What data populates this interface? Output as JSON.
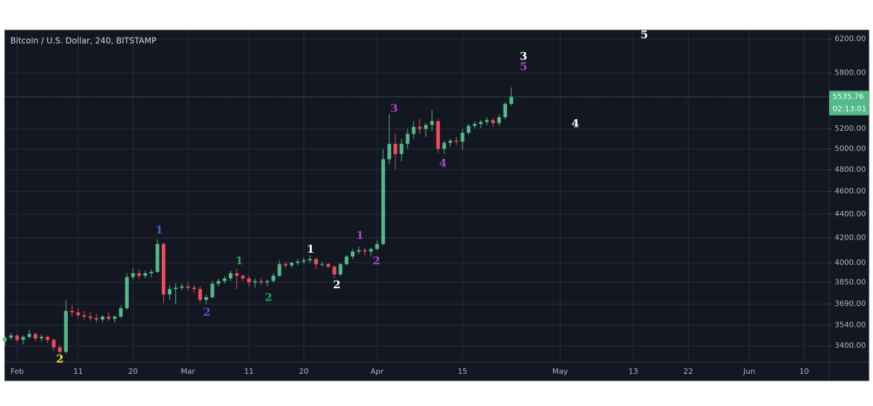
{
  "chart_data": {
    "type": "candlestick",
    "title": "Bitcoin / U.S. Dollar, 240, BITSTAMP",
    "x": [
      -2,
      -1,
      0,
      1,
      2,
      3,
      4,
      5,
      6,
      7,
      8,
      9,
      10,
      11,
      12,
      13,
      14,
      15,
      16,
      17,
      18,
      19,
      20,
      21,
      22,
      23,
      24,
      25,
      26,
      27,
      28,
      29,
      30,
      31,
      32,
      33,
      34,
      35,
      36,
      37,
      38,
      39,
      40,
      41,
      42,
      43,
      44,
      45,
      46,
      47,
      48,
      49,
      50,
      51,
      52,
      53,
      54,
      55,
      56,
      57,
      58,
      59,
      60,
      61,
      62,
      63,
      64,
      65,
      66,
      67,
      68,
      69,
      70,
      71,
      72,
      73,
      74,
      75,
      76,
      77,
      78,
      79,
      80,
      81
    ],
    "open": [
      3430,
      3455,
      3470,
      3440,
      3460,
      3480,
      3450,
      3460,
      3440,
      3390,
      3360,
      3640,
      3630,
      3610,
      3600,
      3590,
      3580,
      3600,
      3585,
      3600,
      3660,
      3890,
      3920,
      3900,
      3920,
      3930,
      4150,
      3760,
      3800,
      3810,
      3820,
      3810,
      3800,
      3720,
      3740,
      3840,
      3860,
      3880,
      3920,
      3900,
      3880,
      3850,
      3860,
      3850,
      3860,
      3900,
      3990,
      3980,
      4000,
      4010,
      4020,
      4030,
      3990,
      3990,
      3970,
      3910,
      3990,
      4050,
      4090,
      4100,
      4090,
      4110,
      4150,
      4900,
      5050,
      4950,
      5050,
      5150,
      5220,
      5200,
      5240,
      5280,
      5000,
      5060,
      5080,
      5070,
      5160,
      5230,
      5250,
      5270,
      5290,
      5260,
      5320,
      5460
    ],
    "high": [
      3470,
      3490,
      3480,
      3470,
      3510,
      3490,
      3475,
      3470,
      3450,
      3400,
      3720,
      3680,
      3660,
      3640,
      3630,
      3620,
      3610,
      3630,
      3610,
      3680,
      3920,
      3960,
      3950,
      3940,
      3950,
      4190,
      4160,
      3830,
      3840,
      3840,
      3850,
      3830,
      3820,
      3760,
      3860,
      3880,
      3900,
      3940,
      3950,
      3910,
      3900,
      3880,
      3880,
      3870,
      3920,
      4020,
      4010,
      4010,
      4030,
      4040,
      4060,
      4040,
      4010,
      4000,
      3980,
      4000,
      4060,
      4110,
      4130,
      4120,
      4120,
      4180,
      5000,
      5350,
      5150,
      5100,
      5200,
      5280,
      5300,
      5260,
      5400,
      5300,
      5080,
      5100,
      5120,
      5200,
      5250,
      5280,
      5290,
      5320,
      5310,
      5350,
      5480,
      5640
    ],
    "low": [
      3400,
      3440,
      3420,
      3410,
      3450,
      3430,
      3430,
      3420,
      3370,
      3340,
      3350,
      3600,
      3590,
      3580,
      3570,
      3560,
      3560,
      3570,
      3560,
      3590,
      3650,
      3870,
      3880,
      3880,
      3890,
      3920,
      3700,
      3720,
      3690,
      3790,
      3790,
      3770,
      3700,
      3690,
      3730,
      3820,
      3840,
      3860,
      3800,
      3860,
      3820,
      3810,
      3830,
      3820,
      3850,
      3890,
      3960,
      3960,
      3980,
      3990,
      4000,
      3950,
      3970,
      3960,
      3880,
      3900,
      3980,
      4030,
      4070,
      4060,
      4050,
      4100,
      4140,
      4850,
      4800,
      4880,
      5000,
      5100,
      5150,
      5120,
      5180,
      4960,
      4950,
      5020,
      5040,
      4990,
      5140,
      5200,
      5210,
      5240,
      5220,
      5230,
      5300,
      5440
    ],
    "close": [
      3455,
      3470,
      3440,
      3460,
      3480,
      3450,
      3460,
      3440,
      3390,
      3360,
      3640,
      3630,
      3610,
      3600,
      3590,
      3580,
      3600,
      3585,
      3600,
      3660,
      3890,
      3920,
      3900,
      3920,
      3930,
      4150,
      3760,
      3800,
      3810,
      3820,
      3810,
      3800,
      3720,
      3740,
      3840,
      3860,
      3880,
      3920,
      3900,
      3880,
      3850,
      3860,
      3850,
      3860,
      3900,
      3990,
      3980,
      4000,
      4010,
      4020,
      4030,
      3990,
      3990,
      3970,
      3910,
      3990,
      4050,
      4090,
      4100,
      4090,
      4110,
      4150,
      4900,
      5050,
      4950,
      5050,
      5150,
      5220,
      5200,
      5240,
      5280,
      5000,
      5060,
      5080,
      5070,
      5160,
      5230,
      5250,
      5270,
      5290,
      5260,
      5320,
      5460,
      5535.76
    ],
    "up_color": "#53b987",
    "down_color": "#eb4d5c",
    "log_scale": true,
    "grid": true,
    "ylim": [
      3293,
      6309
    ],
    "yticks": [
      {
        "value": 3400,
        "label": "3400.00"
      },
      {
        "value": 3540,
        "label": "3540.00"
      },
      {
        "value": 3690,
        "label": "3690.00"
      },
      {
        "value": 3850,
        "label": "3850.00"
      },
      {
        "value": 4000,
        "label": "4000.00"
      },
      {
        "value": 4200,
        "label": "4200.00"
      },
      {
        "value": 4400,
        "label": "4400.00"
      },
      {
        "value": 4600,
        "label": "4600.00"
      },
      {
        "value": 4800,
        "label": "4800.00"
      },
      {
        "value": 5000,
        "label": "5000.00"
      },
      {
        "value": 5200,
        "label": "5200.00"
      },
      {
        "value": 5800,
        "label": "5800.00"
      },
      {
        "value": 6200,
        "label": "6200.00"
      }
    ],
    "xlim": [
      -2.02,
      133.1
    ],
    "xticks": [
      {
        "value": 0,
        "label": "Feb"
      },
      {
        "value": 10,
        "label": "11"
      },
      {
        "value": 19,
        "label": "20"
      },
      {
        "value": 28,
        "label": "Mar"
      },
      {
        "value": 38,
        "label": "11"
      },
      {
        "value": 47,
        "label": "20"
      },
      {
        "value": 59,
        "label": "Apr"
      },
      {
        "value": 73,
        "label": "15"
      },
      {
        "value": 89,
        "label": "May"
      },
      {
        "value": 101,
        "label": "13"
      },
      {
        "value": 110,
        "label": "22"
      },
      {
        "value": 120,
        "label": "Jun"
      },
      {
        "value": 129,
        "label": "10"
      }
    ],
    "last_price": {
      "value": 5535.76,
      "countdown": "02:13:01",
      "color": "#53b987"
    },
    "annotations": [
      {
        "text": "2",
        "x": 7.0,
        "y": 3310,
        "color": "#f5e52a"
      },
      {
        "text": "1",
        "x": 23.3,
        "y": 4262,
        "color": "#4a5cd0"
      },
      {
        "text": "2",
        "x": 31.1,
        "y": 3630,
        "color": "#4a5cd0"
      },
      {
        "text": "1",
        "x": 36.4,
        "y": 4013,
        "color": "#26a65b"
      },
      {
        "text": "2",
        "x": 41.2,
        "y": 3734,
        "color": "#26a65b"
      },
      {
        "text": "1",
        "x": 48.1,
        "y": 4106,
        "color": "#ffffff"
      },
      {
        "text": "2",
        "x": 52.4,
        "y": 3829,
        "color": "#ffffff"
      },
      {
        "text": "1",
        "x": 56.2,
        "y": 4217,
        "color": "#ab47bc"
      },
      {
        "text": "2",
        "x": 58.9,
        "y": 4013,
        "color": "#ab47bc"
      },
      {
        "text": "3",
        "x": 61.8,
        "y": 5407,
        "color": "#ab47bc"
      },
      {
        "text": "4",
        "x": 69.8,
        "y": 4859,
        "color": "#ab47bc"
      },
      {
        "text": "5",
        "x": 83.0,
        "y": 5868,
        "color": "#ab47bc"
      },
      {
        "text": "3",
        "x": 83.0,
        "y": 5986,
        "color": "#ffffff"
      },
      {
        "text": "4",
        "x": 91.5,
        "y": 5250,
        "color": "#ffffff"
      },
      {
        "text": "5",
        "x": 102.8,
        "y": 6245,
        "color": "#ffffff"
      }
    ]
  }
}
